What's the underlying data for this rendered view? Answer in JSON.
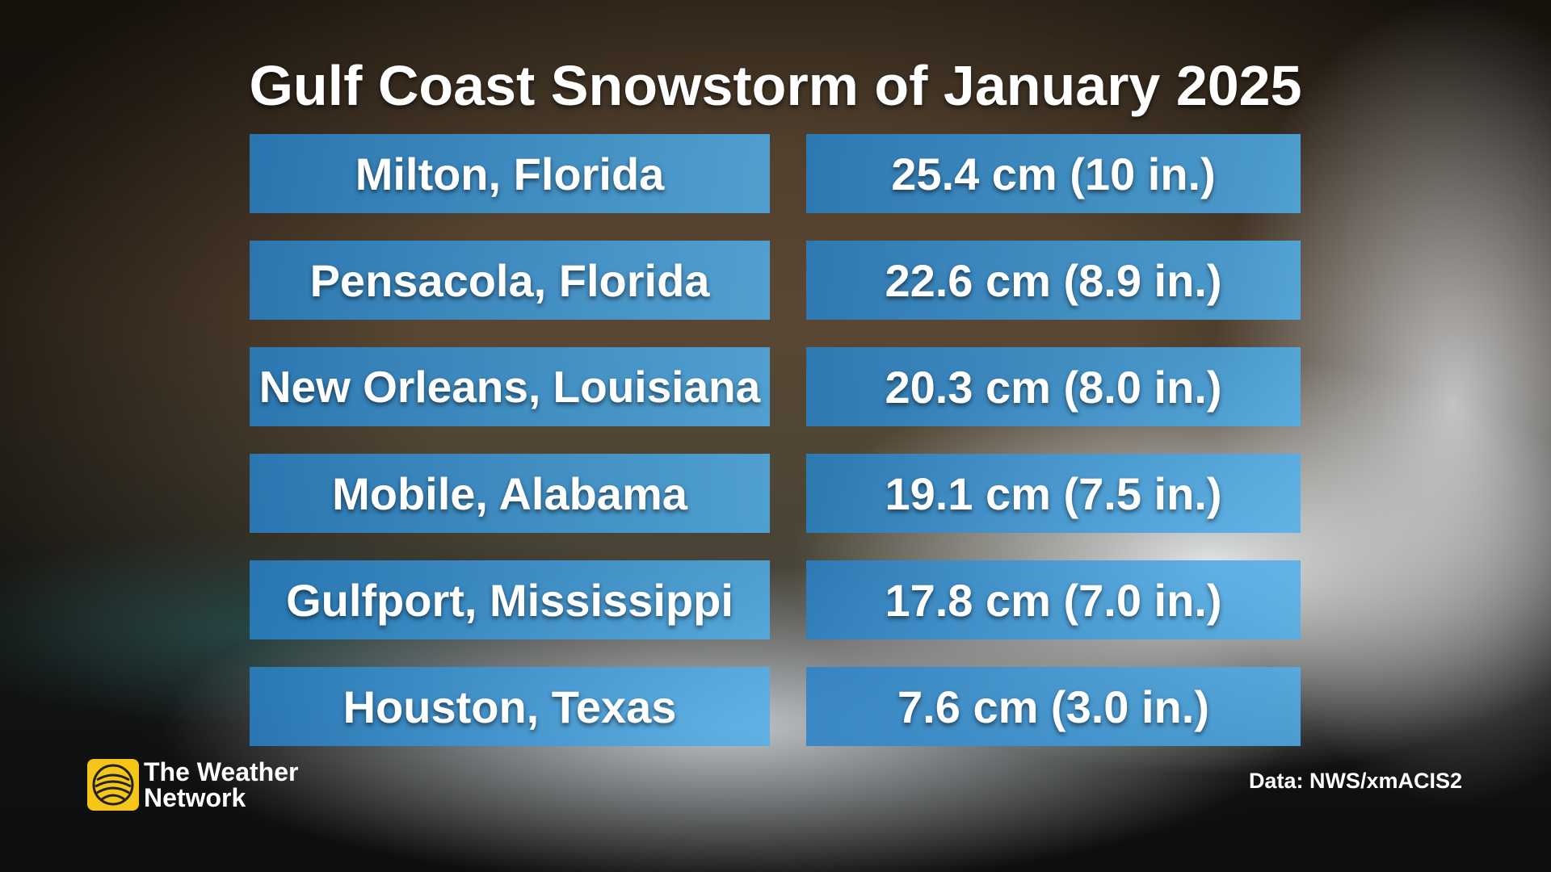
{
  "header": {
    "title": "Gulf Coast Snowstorm of January 2025"
  },
  "table": {
    "rows": [
      [
        "Milton, Florida",
        "25.4 cm (10 in.)"
      ],
      [
        "Pensacola, Florida",
        "22.6 cm (8.9 in.)"
      ],
      [
        "New Orleans, Louisiana",
        "20.3 cm (8.0 in.)"
      ],
      [
        "Mobile, Alabama",
        "19.1 cm (7.5 in.)"
      ],
      [
        "Gulfport, Mississippi",
        "17.8 cm (7.0 in.)"
      ],
      [
        "Houston, Texas",
        "7.6 cm (3.0 in.)"
      ]
    ]
  },
  "footer": {
    "logo": [
      "The Weather",
      "Network"
    ],
    "source": "Data: NWS/xmACIS2"
  }
}
